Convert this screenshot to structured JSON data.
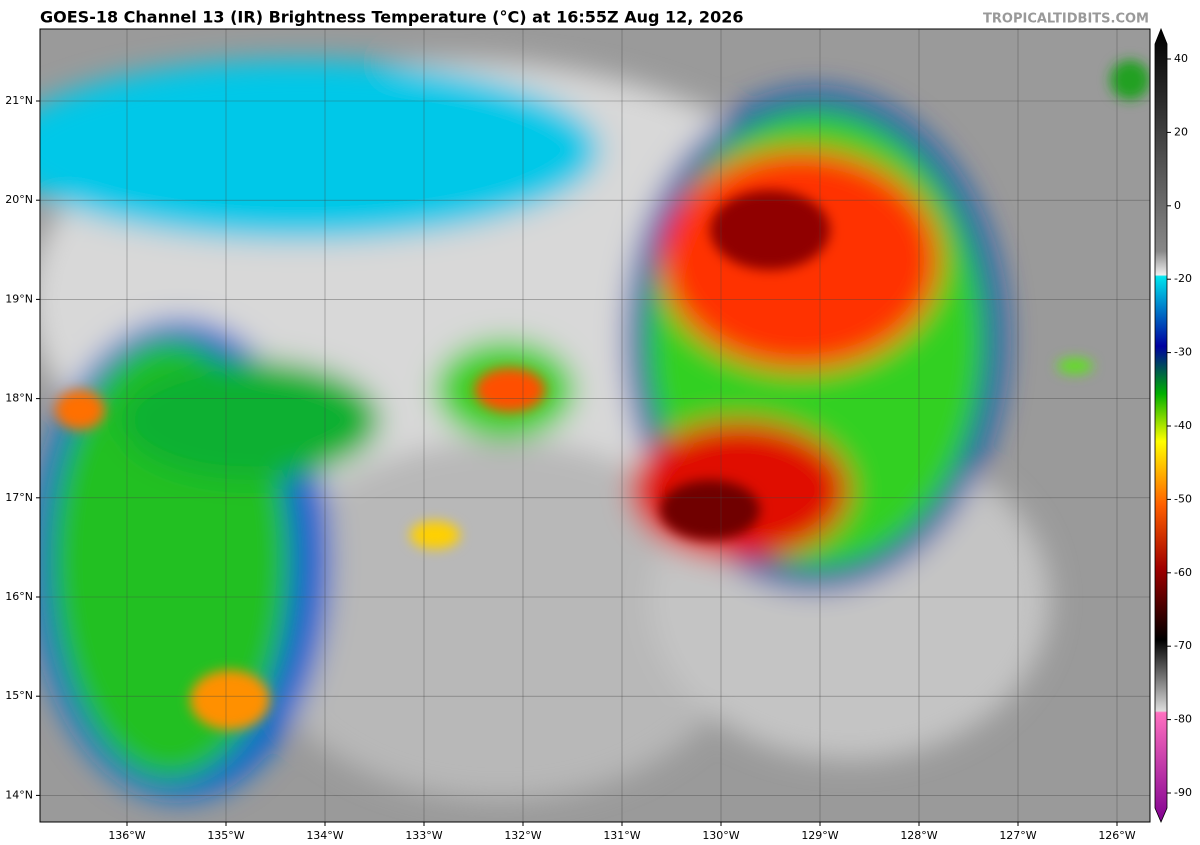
{
  "header": {
    "title": "GOES-18 Channel 13 (IR) Brightness Temperature (°C) at 16:55Z Aug 12, 2026",
    "watermark": "TROPICALTIDBITS.COM"
  },
  "map": {
    "lon_labels": [
      "136°W",
      "135°W",
      "134°W",
      "133°W",
      "132°W",
      "131°W",
      "130°W",
      "129°W",
      "128°W",
      "127°W",
      "126°W"
    ],
    "lat_labels": [
      "21°N",
      "20°N",
      "19°N",
      "18°N",
      "17°N",
      "16°N",
      "15°N",
      "14°N"
    ]
  },
  "colorbar": {
    "ticks": [
      "40",
      "20",
      "0",
      "-20",
      "-30",
      "-40",
      "-50",
      "-60",
      "-70",
      "-80",
      "-90"
    ]
  }
}
